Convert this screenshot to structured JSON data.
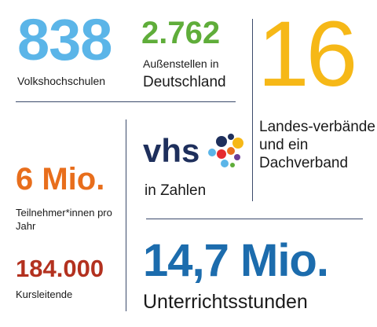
{
  "colors": {
    "light_blue": "#5bb5e8",
    "green": "#5fad3a",
    "yellow": "#f6b817",
    "orange": "#e86e1c",
    "dark_red": "#b3311f",
    "dark_blue": "#1c6cad",
    "navy": "#1e2f5c",
    "rule": "#3b4a6b"
  },
  "stats": {
    "volkshochschulen": {
      "number": "838",
      "label": "Volkshochschulen"
    },
    "aussenstellen": {
      "number": "2.762",
      "label_line1": "Außenstellen in",
      "label_line2": "Deutschland"
    },
    "landesverbaende": {
      "number": "16",
      "label": "Landes-verbände und ein Dachverband"
    },
    "teilnehmer": {
      "number": "6 Mio.",
      "label": "Teilnehmer*innen pro Jahr"
    },
    "kursleitende": {
      "number": "184.000",
      "label": "Kursleitende"
    },
    "unterrichtsstunden": {
      "number": "14,7 Mio.",
      "label": "Unterrichtsstunden"
    }
  },
  "logo": {
    "text": "vhs",
    "icon": "colored-dots-icon"
  },
  "caption": "in Zahlen"
}
